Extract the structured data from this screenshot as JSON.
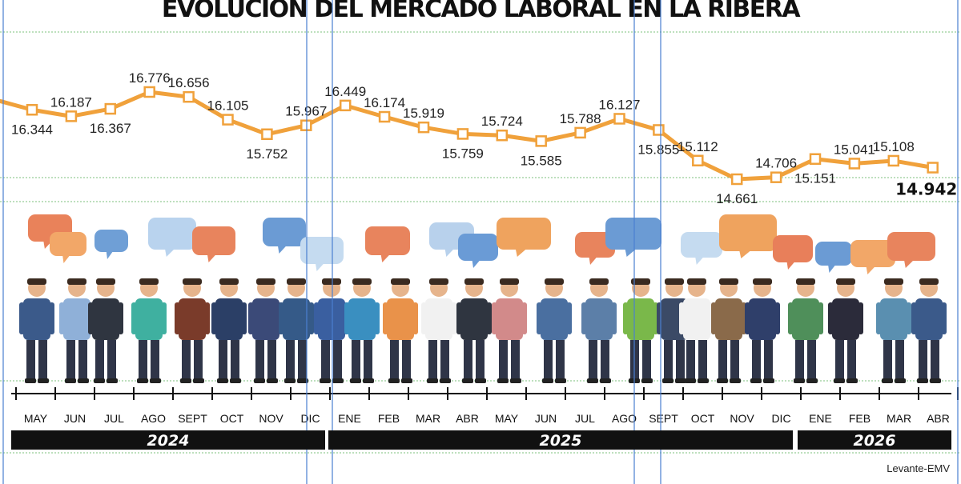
{
  "title": "EVOLUCIÓN DEL MERCADO LABORAL EN LA RIBERA",
  "credit": "Levante-EMV",
  "years": [
    "2024",
    "2025",
    "2026"
  ],
  "colors": {
    "line": "#f0a13b",
    "marker_fill": "#ffffff",
    "year_bar": "#111111",
    "grid": "#7ec27e"
  },
  "chart_data": {
    "type": "line",
    "title": "EVOLUCIÓN DEL MERCADO LABORAL EN LA RIBERA",
    "categories": [
      "MAY",
      "JUN",
      "JUL",
      "AGO",
      "SEPT",
      "OCT",
      "NOV",
      "DIC",
      "ENE",
      "FEB",
      "MAR",
      "ABR",
      "MAY",
      "JUN",
      "JUL",
      "AGO",
      "SEPT",
      "OCT",
      "NOV",
      "DIC",
      "ENE",
      "FEB",
      "MAR",
      "ABR"
    ],
    "values": [
      16344,
      16187,
      16367,
      16776,
      16656,
      16105,
      15752,
      15967,
      16449,
      16174,
      15919,
      15759,
      15724,
      15585,
      15788,
      16127,
      15855,
      15112,
      14661,
      14706,
      15151,
      15041,
      15108,
      14942
    ],
    "labels": [
      "16.344",
      "16.187",
      "16.367",
      "16.776",
      "16.656",
      "16.105",
      "15.752",
      "15.967",
      "16.449",
      "16.174",
      "15.919",
      "15.759",
      "15.724",
      "15.585",
      "15.788",
      "16.127",
      "15.855",
      "15.112",
      "14.661",
      "14.706",
      "15.151",
      "15.041",
      "15.108",
      "14.942"
    ],
    "xlabel": "",
    "ylabel": "",
    "grid": true,
    "legend": "none"
  },
  "illustration": {
    "description_icons": [
      "speech-bubble-icon",
      "worker-figure-icon"
    ],
    "bubble_colors": [
      "#e9825a",
      "#f2a768",
      "#6f9fd6",
      "#b9d3ee",
      "#e8845d",
      "#6b9bd4",
      "#c5dbf0",
      "#e8845d",
      "#b8d1ec",
      "#6a9bd6",
      "#efa35e",
      "#e8845d",
      "#6b9bd4",
      "#c5dbf0",
      "#efa35e",
      "#e87f5a",
      "#6b9bd4",
      "#f2a768",
      "#e8845d"
    ],
    "figure_colors": [
      "#3b5a8a",
      "#8fb0d8",
      "#2f3540",
      "#3fb0a0",
      "#7a3b2a",
      "#2b3f66",
      "#3b4a78",
      "#355a88",
      "#3a5fa0",
      "#3a8fc0",
      "#e9924a",
      "#f1f1f1",
      "#2f3540",
      "#d28a8a",
      "#4a6fa0",
      "#5c7fa8",
      "#7ab84a",
      "#3b4a66",
      "#f1f1f1",
      "#8a6a4a",
      "#2f3f6a",
      "#4f8f5a",
      "#2b2b3a",
      "#5a8fb0"
    ]
  }
}
